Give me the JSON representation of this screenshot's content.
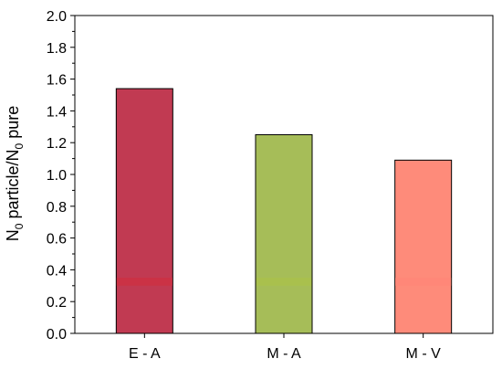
{
  "chart_data": {
    "type": "bar",
    "title": "",
    "categories": [
      "E - A",
      "M - A",
      "M - V"
    ],
    "values": [
      1.54,
      1.25,
      1.09
    ],
    "bar_colors": [
      "#c13a52",
      "#a6bd58",
      "#fe8b7a"
    ],
    "highlight_band": [
      0.3,
      0.35
    ],
    "highlight_colors": [
      "#cb3245",
      "#a9c04d",
      "#ff8778"
    ],
    "xlabel": "",
    "ylabel_parts": [
      "N",
      "0",
      " particle/N",
      "0",
      " pure"
    ],
    "ylim": [
      0.0,
      2.0
    ],
    "yticks": [
      "0.0",
      "0.2",
      "0.4",
      "0.6",
      "0.8",
      "1.0",
      "1.2",
      "1.4",
      "1.6",
      "1.8",
      "2.0"
    ],
    "grid": false,
    "legend": "none"
  }
}
